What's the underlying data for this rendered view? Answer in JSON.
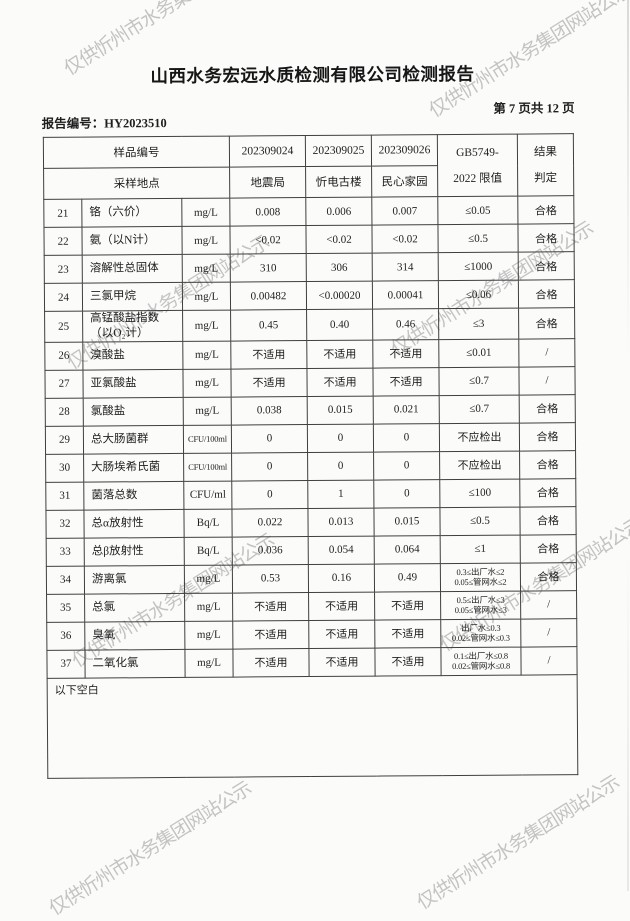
{
  "page": {
    "title": "山西水务宏远水质检测有限公司检测报告",
    "report_no": "报告编号：HY2023510",
    "page_info": "第 7 页共 12 页"
  },
  "watermark": {
    "text": "仅供忻州市水务集团网站公示",
    "color": "#999999"
  },
  "table": {
    "header": {
      "row1_label": "样品编号",
      "row2_label": "采样地点",
      "samples": [
        "202309024",
        "202309025",
        "202309026"
      ],
      "locations": [
        "地震局",
        "忻电古楼",
        "民心家园"
      ],
      "limit_label": "GB5749-\n2022 限值",
      "result_label": "结果\n判定"
    },
    "rows": [
      {
        "no": "21",
        "name": "铬（六价）",
        "unit": "mg/L",
        "v1": "0.008",
        "v2": "0.006",
        "v3": "0.007",
        "limit": "≤0.05",
        "judge": "合格"
      },
      {
        "no": "22",
        "name": "氨（以N计）",
        "unit": "mg/L",
        "v1": "<0.02",
        "v2": "<0.02",
        "v3": "<0.02",
        "limit": "≤0.5",
        "judge": "合格"
      },
      {
        "no": "23",
        "name": "溶解性总固体",
        "unit": "mg/L",
        "v1": "310",
        "v2": "306",
        "v3": "314",
        "limit": "≤1000",
        "judge": "合格"
      },
      {
        "no": "24",
        "name": "三氯甲烷",
        "unit": "mg/L",
        "v1": "0.00482",
        "v2": "<0.00020",
        "v3": "0.00041",
        "limit": "≤0.06",
        "judge": "合格"
      },
      {
        "no": "25",
        "name": "高锰酸盐指数\n（以O₂计）",
        "unit": "mg/L",
        "v1": "0.45",
        "v2": "0.40",
        "v3": "0.46",
        "limit": "≤3",
        "judge": "合格"
      },
      {
        "no": "26",
        "name": "溴酸盐",
        "unit": "mg/L",
        "v1": "不适用",
        "v2": "不适用",
        "v3": "不适用",
        "limit": "≤0.01",
        "judge": "/"
      },
      {
        "no": "27",
        "name": "亚氯酸盐",
        "unit": "mg/L",
        "v1": "不适用",
        "v2": "不适用",
        "v3": "不适用",
        "limit": "≤0.7",
        "judge": "/"
      },
      {
        "no": "28",
        "name": "氯酸盐",
        "unit": "mg/L",
        "v1": "0.038",
        "v2": "0.015",
        "v3": "0.021",
        "limit": "≤0.7",
        "judge": "合格"
      },
      {
        "no": "29",
        "name": "总大肠菌群",
        "unit": "CFU/100ml",
        "v1": "0",
        "v2": "0",
        "v3": "0",
        "limit": "不应检出",
        "judge": "合格"
      },
      {
        "no": "30",
        "name": "大肠埃希氏菌",
        "unit": "CFU/100ml",
        "v1": "0",
        "v2": "0",
        "v3": "0",
        "limit": "不应检出",
        "judge": "合格"
      },
      {
        "no": "31",
        "name": "菌落总数",
        "unit": "CFU/ml",
        "v1": "0",
        "v2": "1",
        "v3": "0",
        "limit": "≤100",
        "judge": "合格"
      },
      {
        "no": "32",
        "name": "总α放射性",
        "unit": "Bq/L",
        "v1": "0.022",
        "v2": "0.013",
        "v3": "0.015",
        "limit": "≤0.5",
        "judge": "合格"
      },
      {
        "no": "33",
        "name": "总β放射性",
        "unit": "Bq/L",
        "v1": "0.036",
        "v2": "0.054",
        "v3": "0.064",
        "limit": "≤1",
        "judge": "合格"
      },
      {
        "no": "34",
        "name": "游离氯",
        "unit": "mg/L",
        "v1": "0.53",
        "v2": "0.16",
        "v3": "0.49",
        "limit": "0.3≤出厂水≤2\n0.05≤管网水≤2",
        "judge": "合格"
      },
      {
        "no": "35",
        "name": "总氯",
        "unit": "mg/L",
        "v1": "不适用",
        "v2": "不适用",
        "v3": "不适用",
        "limit": "0.5≤出厂水≤3\n0.05≤管网水≤3",
        "judge": "/"
      },
      {
        "no": "36",
        "name": "臭氧",
        "unit": "mg/L",
        "v1": "不适用",
        "v2": "不适用",
        "v3": "不适用",
        "limit": "出厂水≤0.3\n0.02≤管网水≤0.3",
        "judge": "/"
      },
      {
        "no": "37",
        "name": "二氧化氯",
        "unit": "mg/L",
        "v1": "不适用",
        "v2": "不适用",
        "v3": "不适用",
        "limit": "0.1≤出厂水≤0.8\n0.02≤管网水≤0.8",
        "judge": "/"
      }
    ],
    "footer_note": "以下空白"
  }
}
